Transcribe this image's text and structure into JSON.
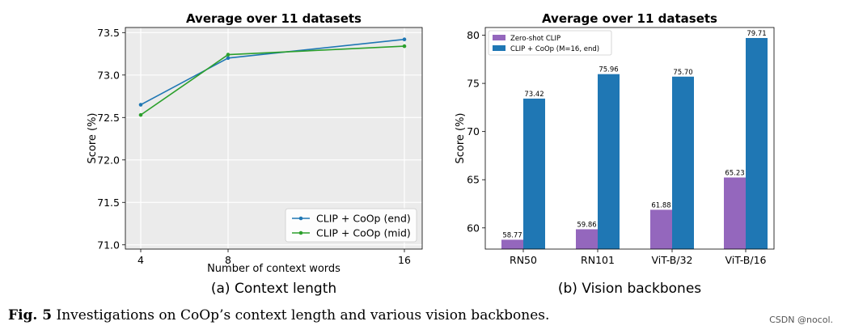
{
  "chart_data": [
    {
      "type": "line",
      "title": "Average over 11 datasets",
      "xlabel": "Number of context words",
      "ylabel": "Score (%)",
      "x": [
        4,
        8,
        16
      ],
      "xticks": [
        "4",
        "8",
        "16"
      ],
      "yticks": [
        "71.0",
        "71.5",
        "72.0",
        "72.5",
        "73.0",
        "73.5"
      ],
      "ylim": [
        70.95,
        73.56
      ],
      "grid": true,
      "legend_position": "lower-right",
      "series": [
        {
          "name": "CLIP + CoOp (end)",
          "values": [
            72.65,
            73.2,
            73.42
          ],
          "color": "#1f77b4"
        },
        {
          "name": "CLIP + CoOp (mid)",
          "values": [
            72.53,
            73.24,
            73.34
          ],
          "color": "#2ca02c"
        }
      ],
      "subcaption": "(a) Context length"
    },
    {
      "type": "bar",
      "title": "Average over 11 datasets",
      "xlabel": "",
      "ylabel": "Score (%)",
      "categories": [
        "RN50",
        "RN101",
        "ViT-B/32",
        "ViT-B/16"
      ],
      "yticks": [
        "60",
        "65",
        "70",
        "75",
        "80"
      ],
      "ylim": [
        57.8,
        80.8
      ],
      "legend_position": "upper-left",
      "series": [
        {
          "name": "Zero-shot CLIP",
          "values": [
            58.77,
            59.86,
            61.88,
            65.23
          ],
          "labels": [
            "58.77",
            "59.86",
            "61.88",
            "65.23"
          ],
          "color": "#9467bd"
        },
        {
          "name": "CLIP + CoOp (M=16, end)",
          "values": [
            73.42,
            75.96,
            75.7,
            79.71
          ],
          "labels": [
            "73.42",
            "75.96",
            "75.70",
            "79.71"
          ],
          "color": "#1f77b4"
        }
      ],
      "subcaption": "(b) Vision backbones"
    }
  ],
  "caption": {
    "label": "Fig. 5",
    "text": "Investigations on CoOp’s context length and various vision backbones."
  },
  "watermark": "CSDN @nocol."
}
